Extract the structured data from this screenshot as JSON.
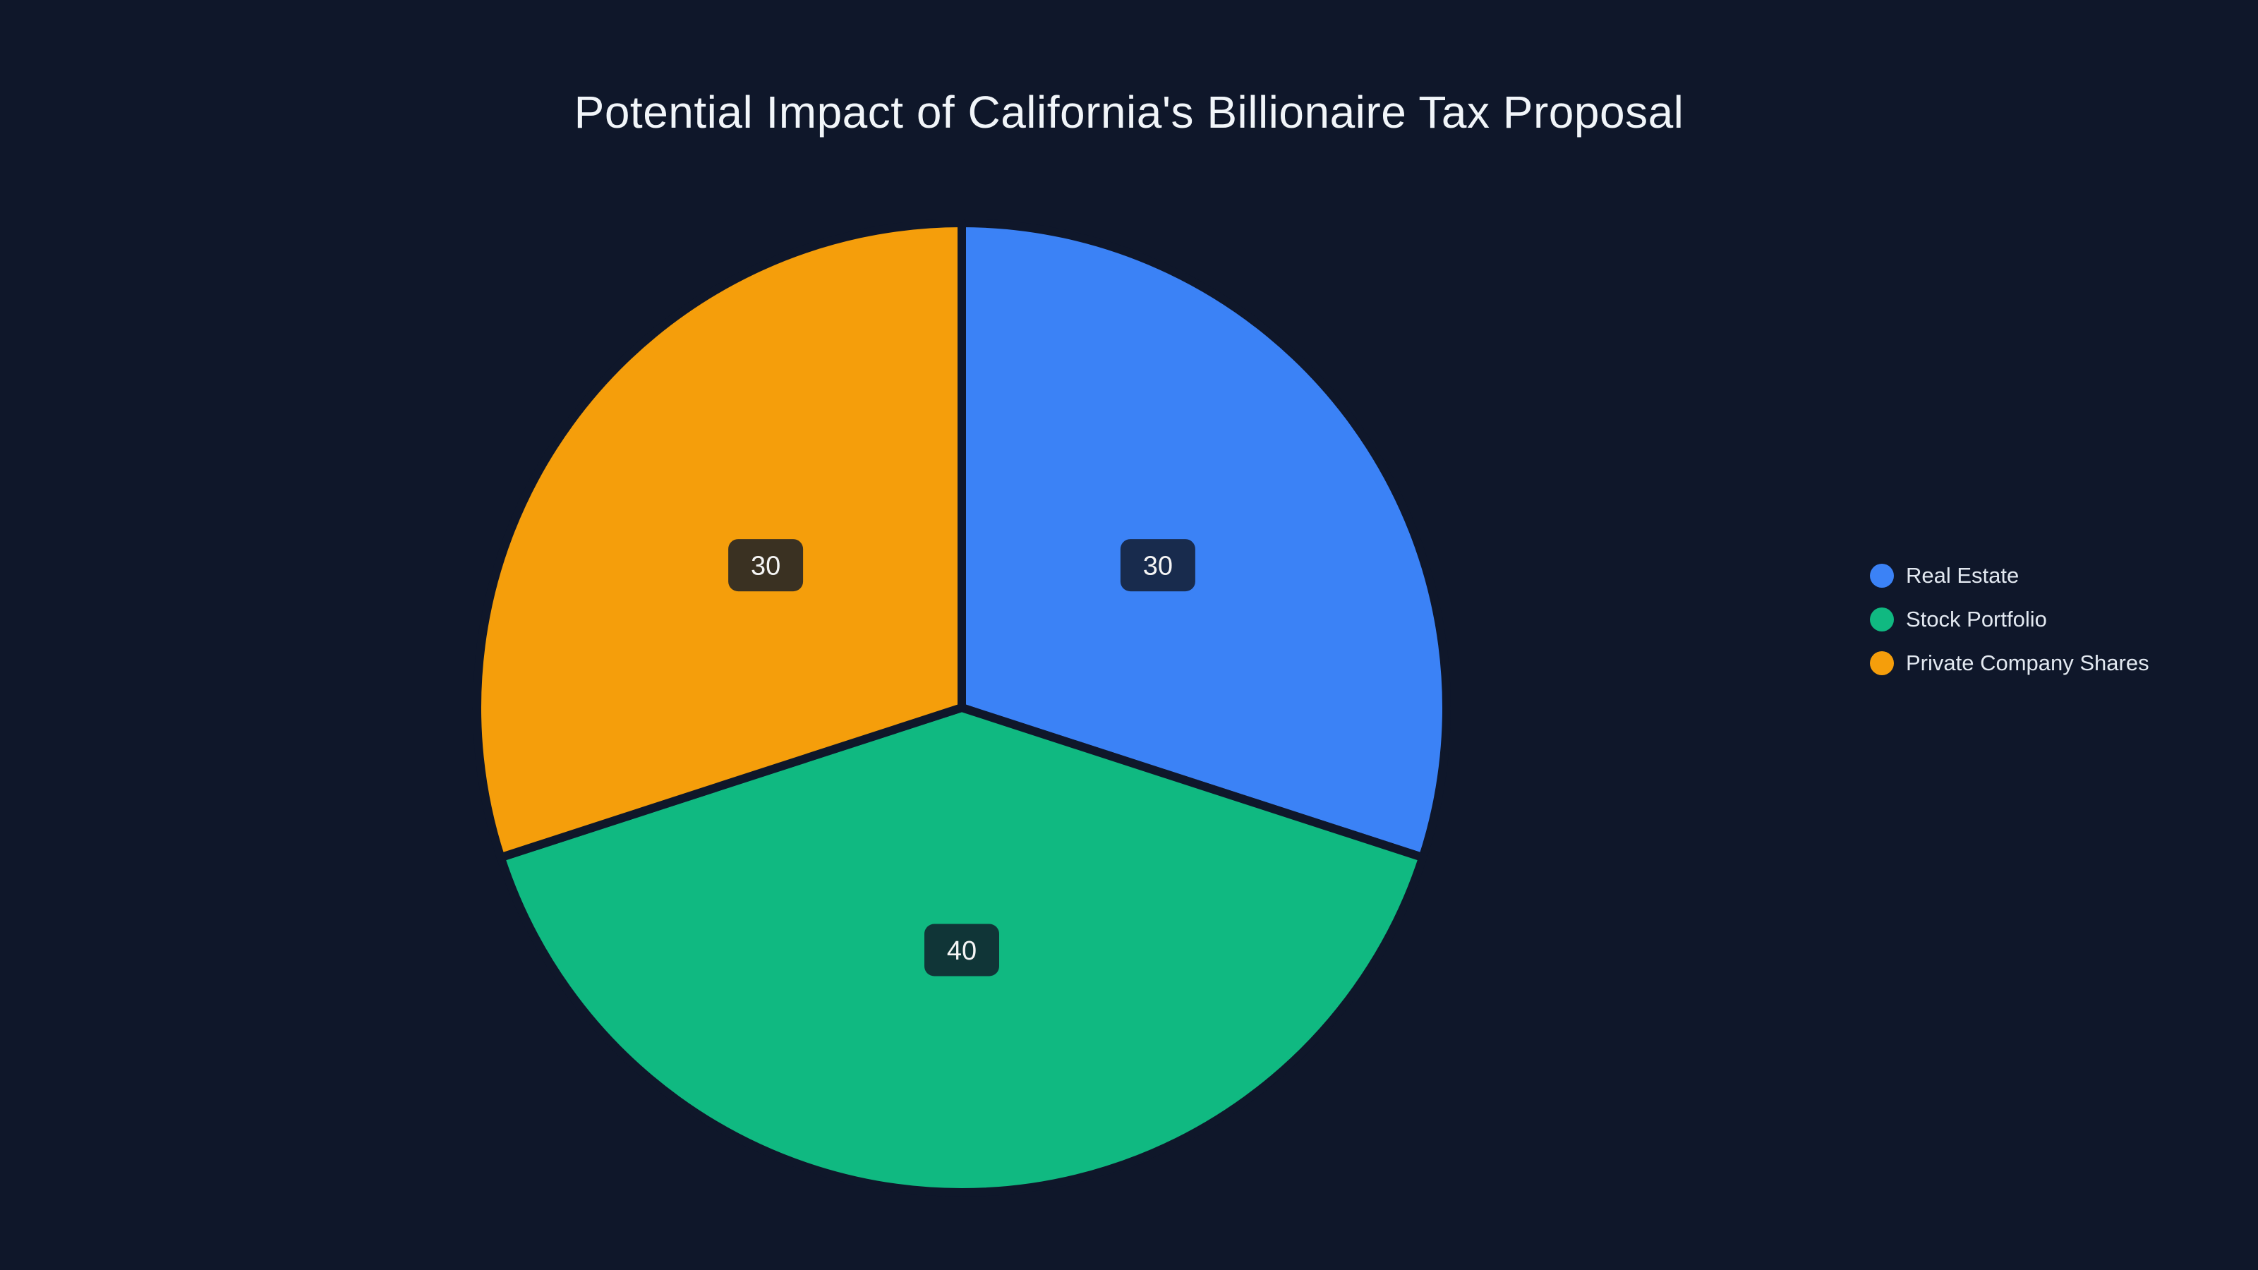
{
  "chart_data": {
    "type": "pie",
    "title": "Potential Impact of California's Billionaire Tax Proposal",
    "slices": [
      {
        "label": "Real Estate",
        "value": 30,
        "value_label": "30",
        "color": "#3b82f6"
      },
      {
        "label": "Stock Portfolio",
        "value": 40,
        "value_label": "40",
        "color": "#10b981"
      },
      {
        "label": "Private Company Shares",
        "value": 30,
        "value_label": "30",
        "color": "#f59e0b"
      }
    ],
    "start_angle": "12-oclock",
    "direction": "clockwise",
    "legend_position": "right",
    "value_labels_inside": true
  },
  "style": {
    "background": "#0f172a",
    "title_color": "#f1f5f9",
    "legend_text_color": "#e2e8f0",
    "slice_gap_color": "#0f172a",
    "value_badge_bg": "rgba(17,24,39,0.82)",
    "value_badge_text_color": "#f5f5f5"
  }
}
